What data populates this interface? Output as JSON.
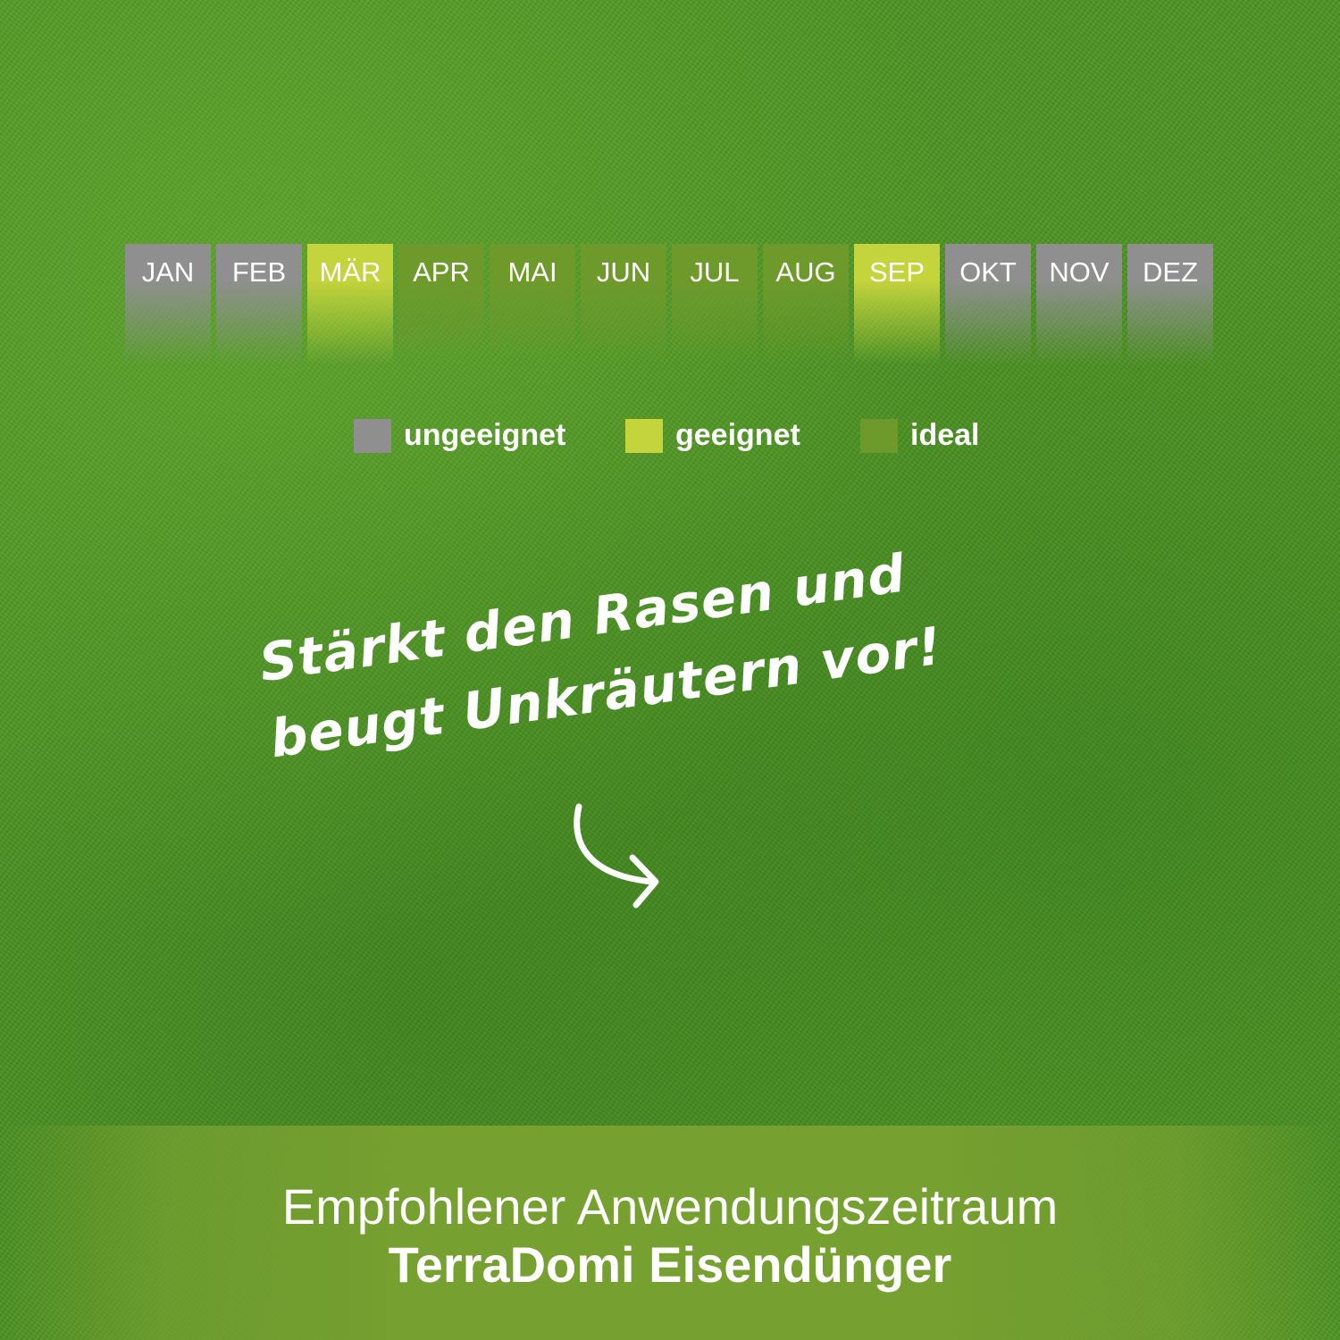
{
  "calendar": {
    "months": [
      {
        "label": "JAN",
        "status": "ungeeignet"
      },
      {
        "label": "FEB",
        "status": "ungeeignet"
      },
      {
        "label": "MÄR",
        "status": "geeignet"
      },
      {
        "label": "APR",
        "status": "ideal"
      },
      {
        "label": "MAI",
        "status": "ideal"
      },
      {
        "label": "JUN",
        "status": "ideal"
      },
      {
        "label": "JUL",
        "status": "ideal"
      },
      {
        "label": "AUG",
        "status": "ideal"
      },
      {
        "label": "SEP",
        "status": "geeignet"
      },
      {
        "label": "OKT",
        "status": "ungeeignet"
      },
      {
        "label": "NOV",
        "status": "ungeeignet"
      },
      {
        "label": "DEZ",
        "status": "ungeeignet"
      }
    ],
    "colors": {
      "ungeeignet": "#8f8f8f",
      "geeignet": "#c3d43c",
      "ideal": "#6e9a2b"
    }
  },
  "legend": [
    {
      "key": "ungeeignet",
      "label": "ungeeignet"
    },
    {
      "key": "geeignet",
      "label": "geeignet"
    },
    {
      "key": "ideal",
      "label": "ideal"
    }
  ],
  "slogan": {
    "line1": "Stärkt den Rasen und",
    "line2": "beugt Unkräutern vor!"
  },
  "footer": {
    "line1": "Empfohlener Anwendungszeitraum",
    "line2": "TerraDomi Eisendünger"
  },
  "icons": {
    "arrow": "curved-arrow-right-icon"
  }
}
